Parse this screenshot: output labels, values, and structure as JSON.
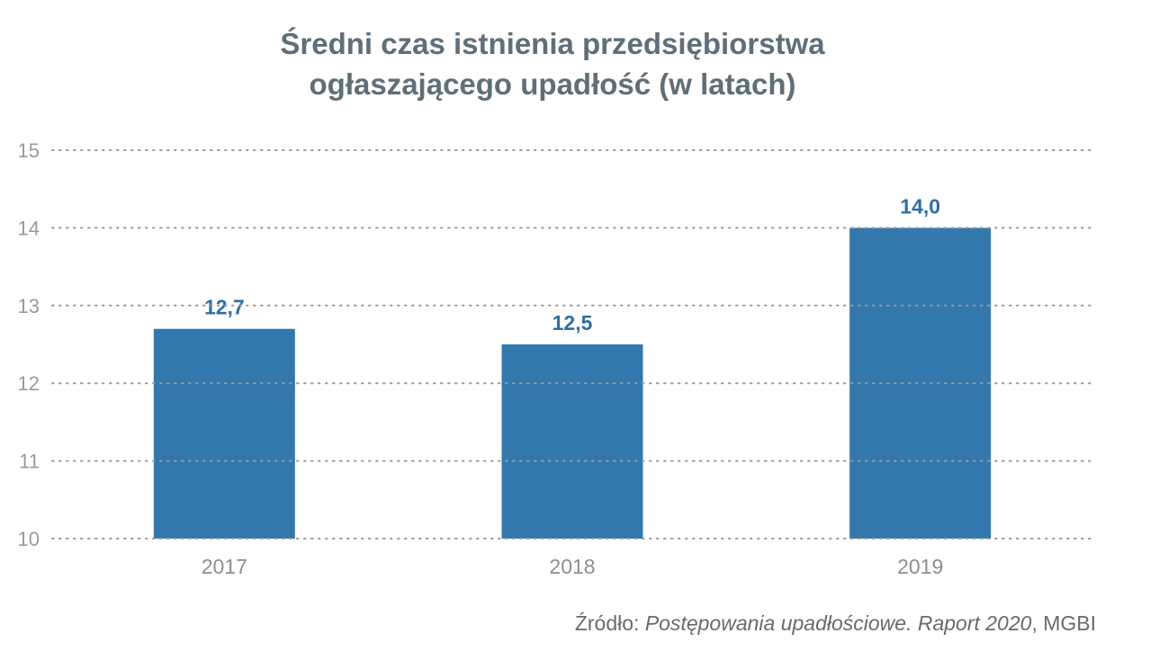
{
  "chart_data": {
    "type": "bar",
    "title_lines": [
      "Średni czas istnienia przedsiębiorstwa",
      "ogłaszającego upadłość (w latach)"
    ],
    "categories": [
      "2017",
      "2018",
      "2019"
    ],
    "values": [
      12.7,
      12.5,
      14.0
    ],
    "data_labels": [
      "12,7",
      "12,5",
      "14,0"
    ],
    "ylim": [
      10,
      15
    ],
    "yticks": [
      "10",
      "11",
      "12",
      "13",
      "14",
      "15"
    ],
    "grid": "dotted horizontal",
    "bar_color": "#3378ad",
    "label_color": "#2f6fa3"
  },
  "source": {
    "prefix": "Źródło: ",
    "italic": "Postępowania upadłościowe. Raport 2020",
    "suffix": ", MGBI"
  }
}
